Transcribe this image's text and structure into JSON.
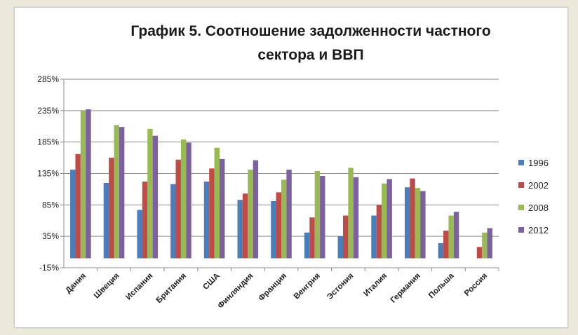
{
  "chart_data": {
    "type": "bar",
    "title": "График 5. Соотношение задолженности частного сектора и ВВП",
    "title_lines": [
      "График 5. Соотношение задолженности частного",
      "сектора и ВВП"
    ],
    "xlabel": "",
    "ylabel": "",
    "ylim": [
      -15,
      285
    ],
    "yticks": [
      285,
      235,
      185,
      135,
      85,
      35,
      -15
    ],
    "ytick_labels": [
      "285%",
      "235%",
      "185%",
      "135%",
      "85%",
      "35%",
      "-15%"
    ],
    "grid": true,
    "legend_position": "right",
    "categories": [
      "Дания",
      "Швеция",
      "Испания",
      "Британия",
      "США",
      "Финляндия",
      "Франция",
      "Венгрия",
      "Эстония",
      "Италия",
      "Германия",
      "Польша",
      "Россия"
    ],
    "series": [
      {
        "name": "1996",
        "color": "#4a7ebb",
        "values": [
          141,
          120,
          77,
          118,
          122,
          93,
          91,
          41,
          35,
          68,
          113,
          24,
          null
        ]
      },
      {
        "name": "2002",
        "color": "#be4b48",
        "values": [
          166,
          160,
          122,
          157,
          143,
          103,
          105,
          65,
          68,
          85,
          127,
          44,
          18
        ]
      },
      {
        "name": "2008",
        "color": "#98b954",
        "values": [
          235,
          212,
          206,
          189,
          176,
          141,
          125,
          139,
          144,
          119,
          112,
          68,
          41
        ]
      },
      {
        "name": "2012",
        "color": "#7d60a0",
        "values": [
          237,
          209,
          195,
          184,
          158,
          156,
          141,
          131,
          129,
          126,
          107,
          74,
          48
        ]
      }
    ]
  }
}
